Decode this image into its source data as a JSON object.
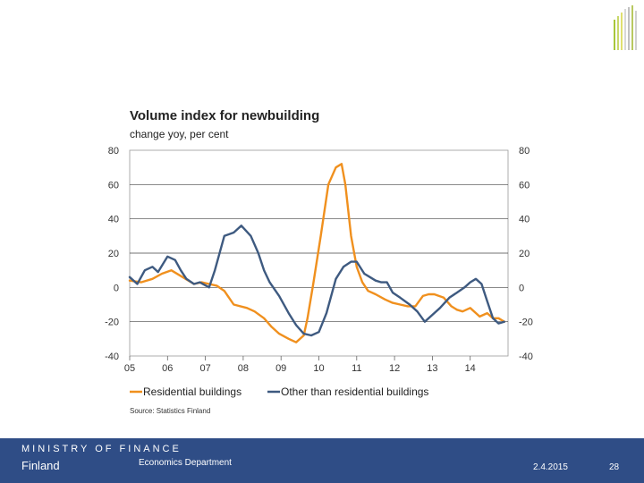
{
  "colors": {
    "residential": "#f0901e",
    "other": "#3e5a80",
    "footer": "#2f4d86"
  },
  "chart_data": {
    "type": "line",
    "title": "Volume index for newbuilding",
    "subtitle": "change yoy, per cent",
    "ylim": [
      -40,
      80
    ],
    "yticks": [
      "80",
      "60",
      "40",
      "20",
      "0",
      "-20",
      "-40"
    ],
    "yticks_right": [
      "80",
      "60",
      "40",
      "20",
      "0",
      "-20",
      "-40"
    ],
    "xlim": [
      2005,
      2015
    ],
    "xticks": [
      "05",
      "06",
      "07",
      "08",
      "09",
      "10",
      "11",
      "12",
      "13",
      "14"
    ],
    "grid": true,
    "legend_position": "bottom",
    "source": "Source: Statistics Finland",
    "series": [
      {
        "name": "Residential buildings",
        "color": "#f0901e",
        "x": [
          2005.0,
          2005.3,
          2005.6,
          2005.85,
          2006.1,
          2006.4,
          2006.7,
          2006.9,
          2007.1,
          2007.3,
          2007.5,
          2007.75,
          2008.1,
          2008.3,
          2008.55,
          2008.75,
          2008.95,
          2009.2,
          2009.4,
          2009.6,
          2009.7,
          2009.85,
          2010.05,
          2010.25,
          2010.45,
          2010.6,
          2010.7,
          2010.85,
          2011.0,
          2011.15,
          2011.3,
          2011.5,
          2011.75,
          2011.95,
          2012.15,
          2012.35,
          2012.55,
          2012.75,
          2012.9,
          2013.05,
          2013.3,
          2013.5,
          2013.65,
          2013.8,
          2014.0,
          2014.25,
          2014.45,
          2014.6,
          2014.75,
          2014.9
        ],
        "values": [
          4,
          3,
          5,
          8,
          10,
          6,
          2,
          3,
          2,
          1,
          -2,
          -10,
          -12,
          -14,
          -18,
          -23,
          -27,
          -30,
          -32,
          -28,
          -18,
          2,
          30,
          60,
          70,
          72,
          60,
          30,
          12,
          3,
          -2,
          -4,
          -7,
          -9,
          -10,
          -11,
          -11,
          -5,
          -4,
          -4,
          -6,
          -11,
          -13,
          -14,
          -12,
          -17,
          -15,
          -18,
          -18,
          -20
        ]
      },
      {
        "name": "Other than residential buildings",
        "color": "#3e5a80",
        "x": [
          2005.0,
          2005.2,
          2005.4,
          2005.6,
          2005.75,
          2006.0,
          2006.2,
          2006.35,
          2006.5,
          2006.7,
          2006.85,
          2007.1,
          2007.25,
          2007.5,
          2007.75,
          2007.95,
          2008.2,
          2008.4,
          2008.55,
          2008.7,
          2008.95,
          2009.2,
          2009.4,
          2009.6,
          2009.8,
          2010.0,
          2010.2,
          2010.45,
          2010.65,
          2010.85,
          2011.0,
          2011.2,
          2011.35,
          2011.5,
          2011.65,
          2011.8,
          2011.95,
          2012.15,
          2012.4,
          2012.6,
          2012.8,
          2013.0,
          2013.2,
          2013.45,
          2013.65,
          2013.85,
          2014.0,
          2014.15,
          2014.3,
          2014.45,
          2014.6,
          2014.75,
          2014.9
        ],
        "values": [
          6,
          2,
          10,
          12,
          9,
          18,
          16,
          10,
          5,
          2,
          3,
          0,
          10,
          30,
          32,
          36,
          30,
          20,
          10,
          3,
          -5,
          -15,
          -22,
          -27,
          -28,
          -26,
          -15,
          5,
          12,
          15,
          15,
          8,
          6,
          4,
          3,
          3,
          -3,
          -6,
          -10,
          -14,
          -20,
          -16,
          -12,
          -6,
          -3,
          0,
          3,
          5,
          2,
          -8,
          -18,
          -21,
          -20
        ]
      }
    ]
  },
  "footer": {
    "ministry": "MINISTRY OF FINANCE",
    "country": "Finland",
    "department": "Economics Department",
    "date": "2.4.2015",
    "page": "28"
  }
}
